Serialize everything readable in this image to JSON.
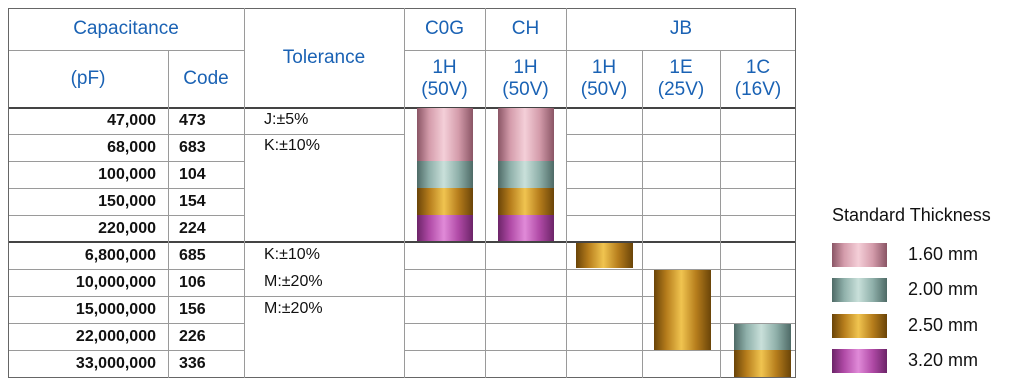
{
  "header": {
    "capacitance": "Capacitance",
    "pf": "(pF)",
    "code": "Code",
    "tolerance": "Tolerance",
    "c0g": "C0G",
    "ch": "CH",
    "jb": "JB",
    "voltages": [
      {
        "code": "1H",
        "volt": "(50V)"
      },
      {
        "code": "1H",
        "volt": "(50V)"
      },
      {
        "code": "1H",
        "volt": "(50V)"
      },
      {
        "code": "1E",
        "volt": "(25V)"
      },
      {
        "code": "1C",
        "volt": "(16V)"
      }
    ]
  },
  "rows": [
    {
      "cap": "47,000",
      "code": "473"
    },
    {
      "cap": "68,000",
      "code": "683"
    },
    {
      "cap": "100,000",
      "code": "104"
    },
    {
      "cap": "150,000",
      "code": "154"
    },
    {
      "cap": "220,000",
      "code": "224"
    },
    {
      "cap": "6,800,000",
      "code": "685"
    },
    {
      "cap": "10,000,000",
      "code": "106"
    },
    {
      "cap": "15,000,000",
      "code": "156"
    },
    {
      "cap": "22,000,000",
      "code": "226"
    },
    {
      "cap": "33,000,000",
      "code": "336"
    }
  ],
  "tolerances": [
    "J:±5%",
    "K:±10%",
    "K:±10%",
    "M:±20%",
    "M:±20%"
  ],
  "legend": {
    "title": "Standard Thickness",
    "items": [
      {
        "label": "1.60 mm",
        "color": "pink"
      },
      {
        "label": "2.00 mm",
        "color": "teal"
      },
      {
        "label": "2.50 mm",
        "color": "gold"
      },
      {
        "label": "3.20 mm",
        "color": "magenta"
      }
    ]
  }
}
